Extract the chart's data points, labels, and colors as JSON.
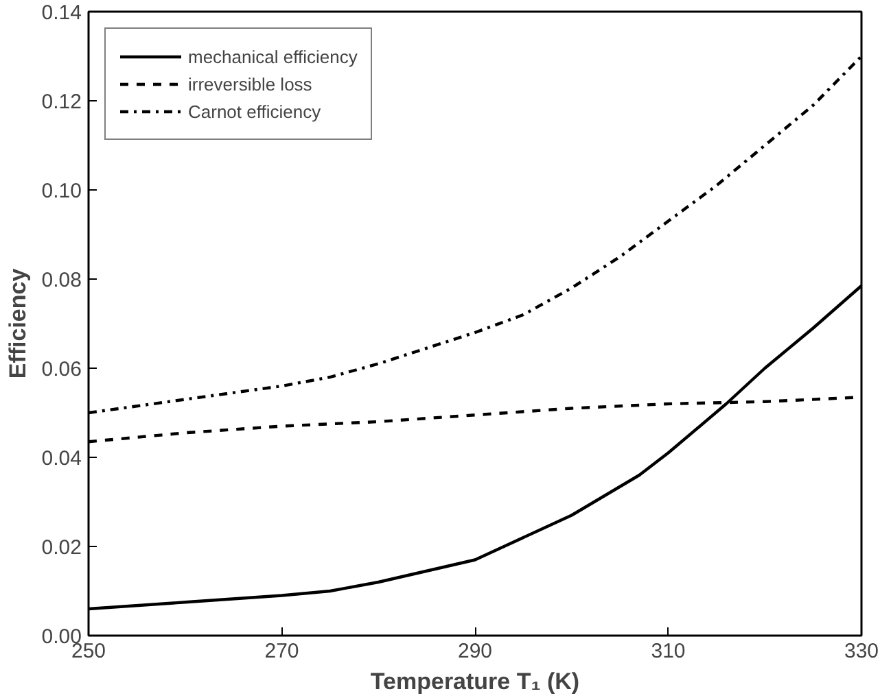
{
  "chart_data": {
    "type": "line",
    "xlabel": "Temperature T₁ (K)",
    "ylabel": "Efficiency",
    "xlim": [
      250,
      330
    ],
    "ylim": [
      0,
      0.14
    ],
    "xticks": [
      250,
      270,
      290,
      310,
      330
    ],
    "yticks": [
      {
        "value": 0,
        "label": "0.00"
      },
      {
        "value": 0.02,
        "label": "0.02"
      },
      {
        "value": 0.04,
        "label": "0.04"
      },
      {
        "value": 0.06,
        "label": "0.06"
      },
      {
        "value": 0.08,
        "label": "0.08"
      },
      {
        "value": 0.1,
        "label": "0.10"
      },
      {
        "value": 0.12,
        "label": "0.12"
      },
      {
        "value": 0.14,
        "label": "0.14"
      }
    ],
    "grid": false,
    "legend": "top left",
    "marker": "none",
    "series": [
      {
        "name": "mechanical efficiency",
        "color": "#000000",
        "line_style": "solid",
        "x": [
          250,
          260,
          270,
          275,
          280,
          290,
          293,
          300,
          307,
          310,
          316,
          320,
          325,
          330
        ],
        "values": [
          0.006,
          0.0075,
          0.009,
          0.01,
          0.012,
          0.017,
          0.02,
          0.027,
          0.036,
          0.041,
          0.052,
          0.06,
          0.069,
          0.0785
        ]
      },
      {
        "name": "irreversible loss",
        "color": "#000000",
        "line_style": "dashed",
        "x": [
          250,
          260,
          270,
          280,
          290,
          300,
          310,
          320,
          330
        ],
        "values": [
          0.0435,
          0.0455,
          0.047,
          0.048,
          0.0495,
          0.051,
          0.052,
          0.0525,
          0.0535
        ]
      },
      {
        "name": "Carnot efficiency",
        "color": "#000000",
        "line_style": "dashdot",
        "x": [
          250,
          260,
          270,
          275,
          280,
          290,
          295,
          300,
          305,
          310,
          315,
          320,
          325,
          330
        ],
        "values": [
          0.05,
          0.053,
          0.056,
          0.058,
          0.061,
          0.068,
          0.072,
          0.078,
          0.085,
          0.093,
          0.101,
          0.11,
          0.119,
          0.13
        ]
      }
    ]
  }
}
